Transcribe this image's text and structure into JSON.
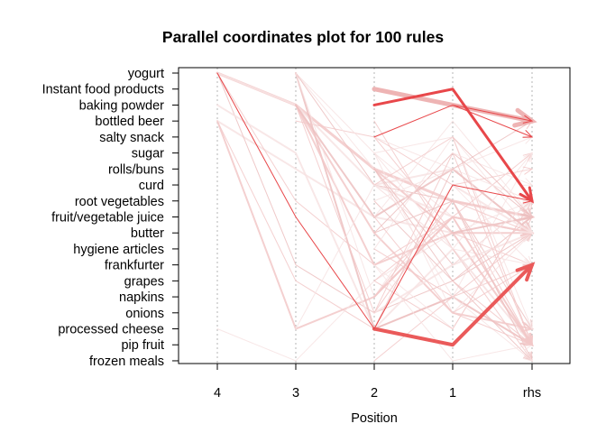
{
  "chart_data": {
    "type": "parallel-coordinates",
    "title": "Parallel coordinates plot for 100 rules",
    "xlabel": "Position",
    "ylabel": "",
    "positions": [
      "4",
      "3",
      "2",
      "1",
      "rhs"
    ],
    "items": [
      "yogurt",
      "Instant food products",
      "baking powder",
      "bottled beer",
      "salty snack",
      "sugar",
      "rolls/buns",
      "curd",
      "root vegetables",
      "fruit/vegetable juice",
      "butter",
      "hygiene articles",
      "frankfurter",
      "grapes",
      "napkins",
      "onions",
      "processed cheese",
      "pip fruit",
      "frozen meals"
    ],
    "colors": {
      "strong": "#e8474a",
      "medium": "#ef8585",
      "light": "#f2c8c8",
      "faint": "#f7e3e3",
      "grid": "#b4b4b4"
    },
    "highlighted_rules": [
      {
        "path": [
          "Instant food products",
          "baking powder",
          "bottled beer"
        ],
        "width": 5,
        "color": "#eeb4b4"
      },
      {
        "path": [
          "baking powder",
          "Instant food products",
          "root vegetables"
        ],
        "width": 3,
        "color": "#e8474a"
      },
      {
        "path": [
          "processed cheese",
          "pip fruit",
          "frankfurter"
        ],
        "width": 4,
        "color": "#ea5a5a"
      },
      {
        "path": [
          "yogurt",
          "fruit/vegetable juice",
          "processed cheese",
          "curd",
          "root vegetables"
        ],
        "width": 1,
        "color": "#e8474a"
      },
      {
        "path": [
          "salty snack",
          "baking powder",
          "salty snack"
        ],
        "width": 1,
        "color": "#e8474a"
      },
      {
        "path": [
          "baking powder",
          "bottled beer"
        ],
        "width": 1,
        "color": "#e8474a"
      }
    ],
    "background_rules": [
      {
        "path": [
          "yogurt",
          "baking powder",
          "rolls/buns",
          "root vegetables",
          "fruit/vegetable juice"
        ],
        "width": 3
      },
      {
        "path": [
          "yogurt",
          "baking powder",
          "curd",
          "rolls/buns",
          "butter"
        ],
        "width": 2
      },
      {
        "path": [
          "bottled beer",
          "processed cheese",
          "napkins",
          "fruit/vegetable juice",
          "butter"
        ],
        "width": 2
      },
      {
        "path": [
          "bottled beer",
          "rolls/buns",
          "fruit/vegetable juice",
          "butter",
          "pip fruit"
        ],
        "width": 2
      },
      {
        "path": [
          "yogurt",
          "frankfurter",
          "onions",
          "grapes",
          "butter"
        ],
        "width": 1
      },
      {
        "path": [
          "bottled beer",
          "grapes",
          "processed cheese",
          "napkins",
          "frankfurter"
        ],
        "width": 1
      },
      {
        "path": [
          "processed cheese",
          "frozen meals",
          "grapes",
          "butter",
          "root vegetables"
        ],
        "width": 1
      },
      {
        "path": [
          "yogurt",
          "root vegetables",
          "frankfurter",
          "fruit/vegetable juice",
          "pip fruit"
        ],
        "width": 1
      },
      {
        "path": [
          "baking powder",
          "sugar",
          "processed cheese",
          "hygiene articles",
          "pip fruit"
        ],
        "width": 2
      },
      {
        "path": [
          "yogurt",
          "processed cheese",
          "napkins",
          "pip fruit"
        ],
        "width": 2
      },
      {
        "path": [
          "bottled beer",
          "salty snack",
          "butter",
          "frankfurter"
        ],
        "width": 1
      },
      {
        "path": [
          "yogurt",
          "rolls/buns",
          "napkins",
          "sugar"
        ],
        "width": 1
      },
      {
        "path": [
          "baking powder",
          "butter",
          "onions",
          "processed cheese"
        ],
        "width": 2
      },
      {
        "path": [
          "yogurt",
          "sugar",
          "fruit/vegetable juice",
          "pip fruit"
        ],
        "width": 1
      },
      {
        "path": [
          "yogurt",
          "curd",
          "root vegetables",
          "processed cheese"
        ],
        "width": 1
      },
      {
        "path": [
          "baking powder",
          "frankfurter",
          "butter",
          "butter"
        ],
        "width": 2
      },
      {
        "path": [
          "yogurt",
          "napkins",
          "curd",
          "frankfurter"
        ],
        "width": 1
      },
      {
        "path": [
          "baking powder",
          "onions",
          "root vegetables",
          "fruit/vegetable juice"
        ],
        "width": 1
      },
      {
        "path": [
          "processed cheese",
          "curd",
          "hygiene articles",
          "pip fruit"
        ],
        "width": 1
      },
      {
        "path": [
          "baking powder",
          "fruit/vegetable juice",
          "rolls/buns",
          "butter"
        ],
        "width": 2
      },
      {
        "path": [
          "bottled beer",
          "hygiene articles",
          "frozen meals"
        ],
        "width": 1
      },
      {
        "path": [
          "sugar",
          "salty snack",
          "processed cheese"
        ],
        "width": 1
      },
      {
        "path": [
          "rolls/buns",
          "butter",
          "pip fruit"
        ],
        "width": 2
      },
      {
        "path": [
          "curd",
          "fruit/vegetable juice",
          "butter"
        ],
        "width": 2
      },
      {
        "path": [
          "root vegetables",
          "grapes",
          "fruit/vegetable juice"
        ],
        "width": 1
      },
      {
        "path": [
          "salty snack",
          "curd",
          "rolls/buns"
        ],
        "width": 1
      },
      {
        "path": [
          "sugar",
          "hygiene articles",
          "frankfurter"
        ],
        "width": 1
      },
      {
        "path": [
          "napkins",
          "root vegetables",
          "pip fruit"
        ],
        "width": 1
      },
      {
        "path": [
          "onions",
          "frankfurter",
          "butter"
        ],
        "width": 2
      },
      {
        "path": [
          "butter",
          "sugar",
          "fruit/vegetable juice"
        ],
        "width": 1
      },
      {
        "path": [
          "grapes",
          "fruit/vegetable juice",
          "sugar"
        ],
        "width": 1
      },
      {
        "path": [
          "frankfurter",
          "processed cheese",
          "root vegetables"
        ],
        "width": 1
      },
      {
        "path": [
          "hygiene articles",
          "napkins",
          "pip fruit"
        ],
        "width": 1
      },
      {
        "path": [
          "fruit/vegetable juice",
          "bottled beer",
          "fruit/vegetable juice"
        ],
        "width": 1
      },
      {
        "path": [
          "rolls/buns",
          "grapes",
          "frozen meals"
        ],
        "width": 1
      },
      {
        "path": [
          "curd",
          "salty snack",
          "pip fruit"
        ],
        "width": 1
      },
      {
        "path": [
          "sugar",
          "onions",
          "butter"
        ],
        "width": 1
      },
      {
        "path": [
          "napkins",
          "fruit/vegetable juice",
          "pip fruit"
        ],
        "width": 2
      },
      {
        "path": [
          "root vegetables",
          "rolls/buns",
          "salty snack"
        ],
        "width": 1
      },
      {
        "path": [
          "butter",
          "root vegetables",
          "frozen meals"
        ],
        "width": 1
      },
      {
        "path": [
          "grapes",
          "processed cheese",
          "root vegetables"
        ],
        "width": 1
      },
      {
        "path": [
          "salty snack",
          "rolls/buns",
          "root vegetables"
        ],
        "width": 1
      },
      {
        "path": [
          "onions",
          "sugar",
          "pip fruit"
        ],
        "width": 1
      },
      {
        "path": [
          "hygiene articles",
          "salty snack",
          "butter"
        ],
        "width": 1
      },
      {
        "path": [
          "processed cheese",
          "rolls/buns",
          "bottled beer"
        ],
        "width": 1
      },
      {
        "path": [
          "frozen meals",
          "napkins",
          "butter"
        ],
        "width": 1
      },
      {
        "path": [
          "frankfurter",
          "frozen meals",
          "pip fruit"
        ],
        "width": 1
      },
      {
        "path": [
          "fruit/vegetable juice",
          "onions",
          "frankfurter"
        ],
        "width": 1
      },
      {
        "path": [
          "curd",
          "hygiene articles",
          "sugar"
        ],
        "width": 1
      },
      {
        "path": [
          "rolls/buns",
          "frankfurter",
          "root vegetables"
        ],
        "width": 1
      },
      {
        "path": [
          "root vegetables",
          "butter"
        ],
        "width": 1
      },
      {
        "path": [
          "sugar",
          "curd"
        ],
        "width": 1
      },
      {
        "path": [
          "grapes",
          "pip fruit"
        ],
        "width": 1
      },
      {
        "path": [
          "napkins",
          "frozen meals"
        ],
        "width": 1
      },
      {
        "path": [
          "butter",
          "fruit/vegetable juice"
        ],
        "width": 2
      },
      {
        "path": [
          "fruit/vegetable juice",
          "butter"
        ],
        "width": 2
      },
      {
        "path": [
          "frankfurter",
          "root vegetables"
        ],
        "width": 1
      },
      {
        "path": [
          "onions",
          "pip fruit"
        ],
        "width": 1
      },
      {
        "path": [
          "curd",
          "butter"
        ],
        "width": 2
      },
      {
        "path": [
          "salty snack",
          "fruit/vegetable juice"
        ],
        "width": 1
      }
    ]
  }
}
